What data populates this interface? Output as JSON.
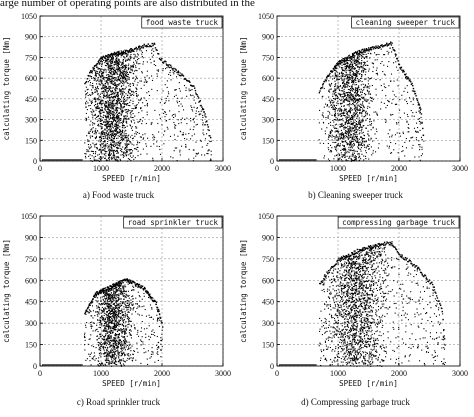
{
  "intro_text": "arge number of operating points are also distributed in the",
  "chart_data": [
    {
      "type": "scatter",
      "legend": "food waste truck",
      "caption": "a) Food waste truck",
      "xlabel": "SPEED [r/min]",
      "ylabel": "calculating torque [Nm]",
      "xlim": [
        0,
        3000
      ],
      "ylim": [
        0,
        1050
      ],
      "xticks": [
        0,
        1000,
        2000,
        3000
      ],
      "yticks": [
        0,
        150,
        300,
        450,
        600,
        750,
        900,
        1050
      ],
      "grid": true,
      "legend_position": "top-right",
      "envelope": [
        [
          700,
          0
        ],
        [
          720,
          560
        ],
        [
          800,
          650
        ],
        [
          1000,
          760
        ],
        [
          1200,
          790
        ],
        [
          1500,
          820
        ],
        [
          1700,
          850
        ],
        [
          1870,
          860
        ],
        [
          1950,
          760
        ],
        [
          2250,
          660
        ],
        [
          2500,
          560
        ],
        [
          2700,
          360
        ],
        [
          2800,
          150
        ],
        [
          2800,
          0
        ]
      ],
      "density": {
        "x_range": [
          700,
          2800
        ],
        "peak_x": 1200,
        "spread": 500
      }
    },
    {
      "type": "scatter",
      "legend": "cleaning sweeper truck",
      "caption": "b) Cleaning sweeper truck",
      "xlabel": "SPEED [r/min]",
      "ylabel": "calculating torque [Nm]",
      "xlim": [
        0,
        3000
      ],
      "ylim": [
        0,
        1050
      ],
      "xticks": [
        0,
        1000,
        2000,
        3000
      ],
      "yticks": [
        0,
        150,
        300,
        450,
        600,
        750,
        900,
        1050
      ],
      "grid": true,
      "legend_position": "top-right",
      "envelope": [
        [
          650,
          0
        ],
        [
          680,
          520
        ],
        [
          800,
          620
        ],
        [
          1000,
          730
        ],
        [
          1300,
          800
        ],
        [
          1600,
          840
        ],
        [
          1870,
          870
        ],
        [
          2000,
          700
        ],
        [
          2200,
          580
        ],
        [
          2350,
          380
        ],
        [
          2400,
          150
        ],
        [
          2400,
          0
        ]
      ],
      "density": {
        "x_range": [
          650,
          2400
        ],
        "peak_x": 1200,
        "spread": 400
      }
    },
    {
      "type": "scatter",
      "legend": "road sprinkler truck",
      "caption": "c) Road sprinkler truck",
      "xlabel": "SPEED [r/min]",
      "ylabel": "calculating torque [Nm]",
      "xlim": [
        0,
        3000
      ],
      "ylim": [
        0,
        1050
      ],
      "xticks": [
        0,
        1000,
        2000,
        3000
      ],
      "yticks": [
        0,
        150,
        300,
        450,
        600,
        750,
        900,
        1050
      ],
      "grid": true,
      "legend_position": "top-right",
      "envelope": [
        [
          700,
          0
        ],
        [
          720,
          380
        ],
        [
          900,
          520
        ],
        [
          1200,
          580
        ],
        [
          1400,
          620
        ],
        [
          1700,
          560
        ],
        [
          1900,
          450
        ],
        [
          2000,
          300
        ],
        [
          2050,
          0
        ]
      ],
      "density": {
        "x_range": [
          700,
          2050
        ],
        "peak_x": 1200,
        "spread": 350
      }
    },
    {
      "type": "scatter",
      "legend": "compressing garbage truck",
      "caption": "d) Compressing garbage truck",
      "xlabel": "SPEED [r/min]",
      "ylabel": "calculating torque [Nm]",
      "xlim": [
        0,
        3000
      ],
      "ylim": [
        0,
        1050
      ],
      "xticks": [
        0,
        1000,
        2000,
        3000
      ],
      "yticks": [
        0,
        150,
        300,
        450,
        600,
        750,
        900,
        1050
      ],
      "grid": true,
      "legend_position": "top-right",
      "envelope": [
        [
          650,
          0
        ],
        [
          680,
          580
        ],
        [
          800,
          660
        ],
        [
          1000,
          760
        ],
        [
          1300,
          820
        ],
        [
          1600,
          860
        ],
        [
          1870,
          880
        ],
        [
          2000,
          800
        ],
        [
          2300,
          700
        ],
        [
          2550,
          580
        ],
        [
          2700,
          400
        ],
        [
          2750,
          150
        ],
        [
          2750,
          0
        ]
      ],
      "density": {
        "x_range": [
          650,
          2750
        ],
        "peak_x": 1300,
        "spread": 550
      }
    }
  ]
}
